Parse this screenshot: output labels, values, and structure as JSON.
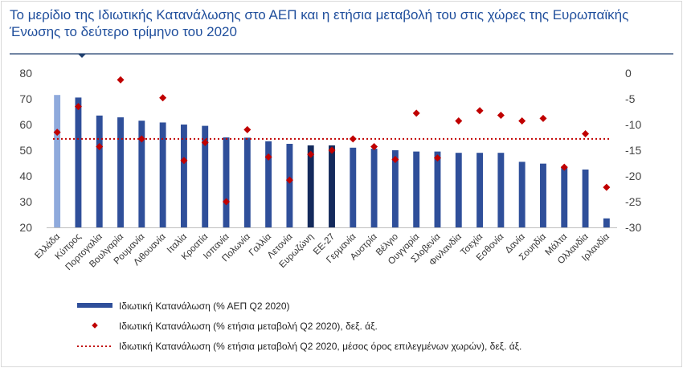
{
  "title_lines": [
    "Το μερίδιο της Ιδιωτικής Κατανάλωσης στο ΑΕΠ και η ετήσια μεταβολή του στις χώρες της Ευρωπαϊκής",
    "Ένωσης το δεύτερο τρίμηνο του 2020"
  ],
  "colors": {
    "title": "#1f4e9c",
    "bar": "#2f4f9a",
    "bar_greece": "#8faadc",
    "bar_dark": "#142a5c",
    "marker": "#c00000",
    "avg_line": "#c00000",
    "rule": "#1f3f6e"
  },
  "chart_data": {
    "type": "bar",
    "categories": [
      "Ελλάδα",
      "Κύπρος",
      "Πορτογαλία",
      "Βουλγαρία",
      "Ρουμανία",
      "Λιθουανία",
      "Ιταλία",
      "Κροατία",
      "Ισπανία",
      "Πολωνία",
      "Γαλλία",
      "Λετονία",
      "Ευρωζώνη",
      "ΕΕ-27",
      "Γερμανία",
      "Αυστρία",
      "Βέλγιο",
      "Ουγγαρία",
      "Σλοβενία",
      "Φινλανδία",
      "Τσεχία",
      "Εσθονία",
      "Δανία",
      "Σουηδία",
      "Μάλτα",
      "Ολλανδία",
      "Ιρλανδία"
    ],
    "highlight": {
      "Ελλάδα": "bar_greece",
      "Ευρωζώνη": "bar_dark",
      "ΕΕ-27": "bar_dark"
    },
    "series": [
      {
        "name": "Ιδιωτική Κατανάλωση (% ΑΕΠ Q2 2020)",
        "axis": "left",
        "kind": "bar",
        "values": [
          71.5,
          70.5,
          63.5,
          62.8,
          61.5,
          60.8,
          60.0,
          59.5,
          55.0,
          54.9,
          53.5,
          52.5,
          51.9,
          51.9,
          51.0,
          50.6,
          50.0,
          49.5,
          49.5,
          49.0,
          49.0,
          49.0,
          45.5,
          44.8,
          43.6,
          42.5,
          23.5
        ]
      },
      {
        "name": "Ιδιωτική Κατανάλωση (% ετήσια μεταβολή Q2 2020), δεξ. άξ.",
        "axis": "right",
        "kind": "marker",
        "values": [
          -11.5,
          -6.5,
          -14.3,
          -1.3,
          -12.8,
          -4.8,
          -17.0,
          -13.5,
          -25.0,
          -11.0,
          -16.3,
          -20.8,
          -15.8,
          -15.0,
          -12.8,
          -14.3,
          -16.8,
          -7.8,
          -16.5,
          -9.3,
          -7.3,
          -8.2,
          -9.3,
          -8.8,
          -18.3,
          -11.8,
          -22.2
        ]
      },
      {
        "name": "Ιδιωτική Κατανάλωση (% ετήσια μεταβολή Q2 2020, μέσος όρος επιλεγμένων χωρών), δεξ. άξ.",
        "axis": "right",
        "kind": "line",
        "value": -12.8
      }
    ],
    "y_left": {
      "min": 20,
      "max": 80,
      "ticks": [
        20,
        30,
        40,
        50,
        60,
        70,
        80
      ]
    },
    "y_right": {
      "min": -30,
      "max": 0,
      "ticks": [
        -30,
        -25,
        -20,
        -15,
        -10,
        -5,
        0
      ]
    },
    "legend_position": "bottom-left"
  }
}
